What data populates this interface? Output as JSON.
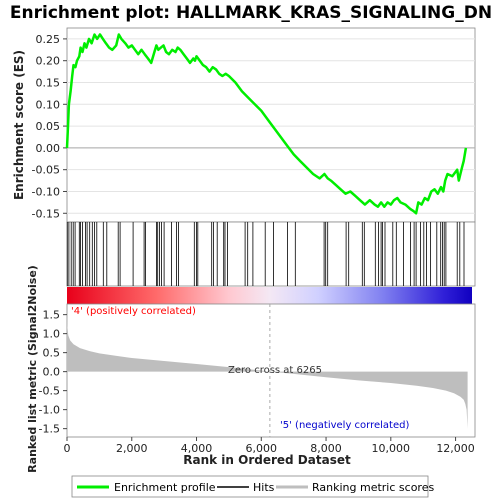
{
  "chart_data": [
    {
      "type": "line",
      "title": "Enrichment plot: HALLMARK_KRAS_SIGNALING_DN",
      "ylabel": "Enrichment score (ES)",
      "xlim": [
        0,
        12600
      ],
      "ylim": [
        -0.17,
        0.275
      ],
      "yticks": [
        -0.15,
        -0.1,
        -0.05,
        0.0,
        0.05,
        0.1,
        0.15,
        0.2,
        0.25
      ],
      "ytick_labels": [
        "-0.15",
        "-0.10",
        "-0.05",
        "0.00",
        "0.05",
        "0.10",
        "0.15",
        "0.20",
        "0.25"
      ],
      "grid": true,
      "series": [
        {
          "name": "Enrichment profile",
          "color": "#00ee00",
          "x": [
            0,
            30,
            60,
            110,
            160,
            200,
            260,
            310,
            380,
            420,
            480,
            540,
            600,
            680,
            760,
            850,
            930,
            1020,
            1110,
            1200,
            1300,
            1400,
            1520,
            1600,
            1680,
            1800,
            1900,
            2000,
            2100,
            2200,
            2300,
            2400,
            2500,
            2600,
            2700,
            2760,
            2820,
            2900,
            2980,
            3060,
            3150,
            3250,
            3350,
            3420,
            3500,
            3600,
            3700,
            3800,
            3900,
            3950,
            4000,
            4100,
            4200,
            4300,
            4400,
            4500,
            4600,
            4700,
            4800,
            4900,
            5000,
            5200,
            5400,
            5600,
            5800,
            6000,
            6200,
            6400,
            6600,
            6800,
            7000,
            7200,
            7400,
            7600,
            7800,
            7950,
            8050,
            8150,
            8300,
            8450,
            8600,
            8750,
            8900,
            9050,
            9200,
            9350,
            9500,
            9600,
            9700,
            9800,
            9900,
            10000,
            10100,
            10200,
            10300,
            10450,
            10600,
            10700,
            10780,
            10850,
            10950,
            11050,
            11150,
            11250,
            11350,
            11450,
            11550,
            11620,
            11680,
            11750,
            11900,
            12050,
            12100,
            12150,
            12200,
            12250,
            12320
          ],
          "y": [
            0.0,
            0.05,
            0.1,
            0.13,
            0.165,
            0.19,
            0.185,
            0.2,
            0.21,
            0.23,
            0.22,
            0.24,
            0.23,
            0.25,
            0.24,
            0.26,
            0.25,
            0.26,
            0.25,
            0.24,
            0.23,
            0.225,
            0.235,
            0.26,
            0.25,
            0.24,
            0.23,
            0.235,
            0.225,
            0.215,
            0.225,
            0.215,
            0.205,
            0.195,
            0.22,
            0.235,
            0.225,
            0.23,
            0.235,
            0.22,
            0.215,
            0.225,
            0.22,
            0.23,
            0.225,
            0.215,
            0.205,
            0.195,
            0.205,
            0.2,
            0.21,
            0.2,
            0.19,
            0.185,
            0.175,
            0.185,
            0.18,
            0.17,
            0.165,
            0.17,
            0.165,
            0.15,
            0.13,
            0.115,
            0.1,
            0.085,
            0.065,
            0.045,
            0.025,
            0.005,
            -0.015,
            -0.03,
            -0.045,
            -0.06,
            -0.07,
            -0.06,
            -0.07,
            -0.075,
            -0.085,
            -0.095,
            -0.105,
            -0.1,
            -0.11,
            -0.12,
            -0.13,
            -0.12,
            -0.13,
            -0.135,
            -0.125,
            -0.135,
            -0.125,
            -0.13,
            -0.12,
            -0.115,
            -0.125,
            -0.13,
            -0.14,
            -0.145,
            -0.15,
            -0.125,
            -0.13,
            -0.115,
            -0.12,
            -0.1,
            -0.095,
            -0.105,
            -0.09,
            -0.1,
            -0.075,
            -0.06,
            -0.065,
            -0.05,
            -0.075,
            -0.06,
            -0.045,
            -0.03,
            0.0
          ]
        }
      ]
    },
    {
      "type": "hits",
      "series_name": "Hits",
      "x": [
        10,
        60,
        130,
        190,
        250,
        380,
        420,
        480,
        570,
        620,
        700,
        780,
        850,
        920,
        1120,
        1230,
        1580,
        1640,
        2040,
        2380,
        2420,
        2760,
        2800,
        2860,
        2920,
        3000,
        3230,
        3380,
        3440,
        3930,
        4000,
        4040,
        4470,
        4520,
        4640,
        4840,
        4880,
        4960,
        5500,
        5580,
        5740,
        6120,
        6380,
        6810,
        7050,
        7940,
        7990,
        8050,
        8620,
        8700,
        9120,
        9180,
        9520,
        9620,
        9700,
        9740,
        9820,
        10060,
        10170,
        10390,
        10610,
        10720,
        10780,
        10920,
        11020,
        11100,
        11230,
        11420,
        11540,
        11600,
        11650,
        11700,
        12050,
        12130,
        12260
      ]
    },
    {
      "type": "area",
      "title": "",
      "ylabel": "Ranked list metric (Signal2Noise)",
      "xlabel": "Rank in Ordered Dataset",
      "xlim": [
        0,
        12600
      ],
      "ylim": [
        -1.72,
        1.78
      ],
      "yticks": [
        -1.5,
        -1.0,
        -0.5,
        0.0,
        0.5,
        1.0,
        1.5
      ],
      "ytick_labels": [
        "-1.5",
        "-1.0",
        "-0.5",
        "0.0",
        "0.5",
        "1.0",
        "1.5"
      ],
      "xticks": [
        0,
        2000,
        4000,
        6000,
        8000,
        10000,
        12000
      ],
      "xtick_labels": [
        "0",
        "2,000",
        "4,000",
        "6,000",
        "8,000",
        "10,000",
        "12,000"
      ],
      "series": [
        {
          "name": "Ranking metric scores",
          "color": "#bebebe",
          "x": [
            0,
            10,
            40,
            100,
            200,
            400,
            700,
            1000,
            1500,
            2000,
            3000,
            4000,
            5000,
            6000,
            6265,
            7000,
            8000,
            9000,
            10000,
            10800,
            11300,
            11700,
            11950,
            12150,
            12250,
            12300,
            12340,
            12370
          ],
          "y": [
            1.6,
            1.2,
            0.95,
            0.82,
            0.72,
            0.62,
            0.54,
            0.48,
            0.42,
            0.36,
            0.28,
            0.2,
            0.12,
            0.03,
            0.0,
            -0.06,
            -0.15,
            -0.23,
            -0.3,
            -0.37,
            -0.43,
            -0.5,
            -0.57,
            -0.66,
            -0.74,
            -0.85,
            -1.0,
            -1.5
          ]
        }
      ],
      "annotations": [
        {
          "text": "'4' (positively correlated)",
          "color": "#ff0000"
        },
        {
          "text": "Zero cross at 6265",
          "color": "#333333"
        },
        {
          "text": "'5' (negatively correlated)",
          "color": "#0000cc"
        }
      ],
      "zero_cross": 6265
    }
  ],
  "legend": {
    "placement": "bottom",
    "items": [
      {
        "label": "Enrichment profile",
        "color": "#00ee00"
      },
      {
        "label": "Hits",
        "color": "#000000"
      },
      {
        "label": "Ranking metric scores",
        "color": "#bebebe"
      }
    ]
  }
}
